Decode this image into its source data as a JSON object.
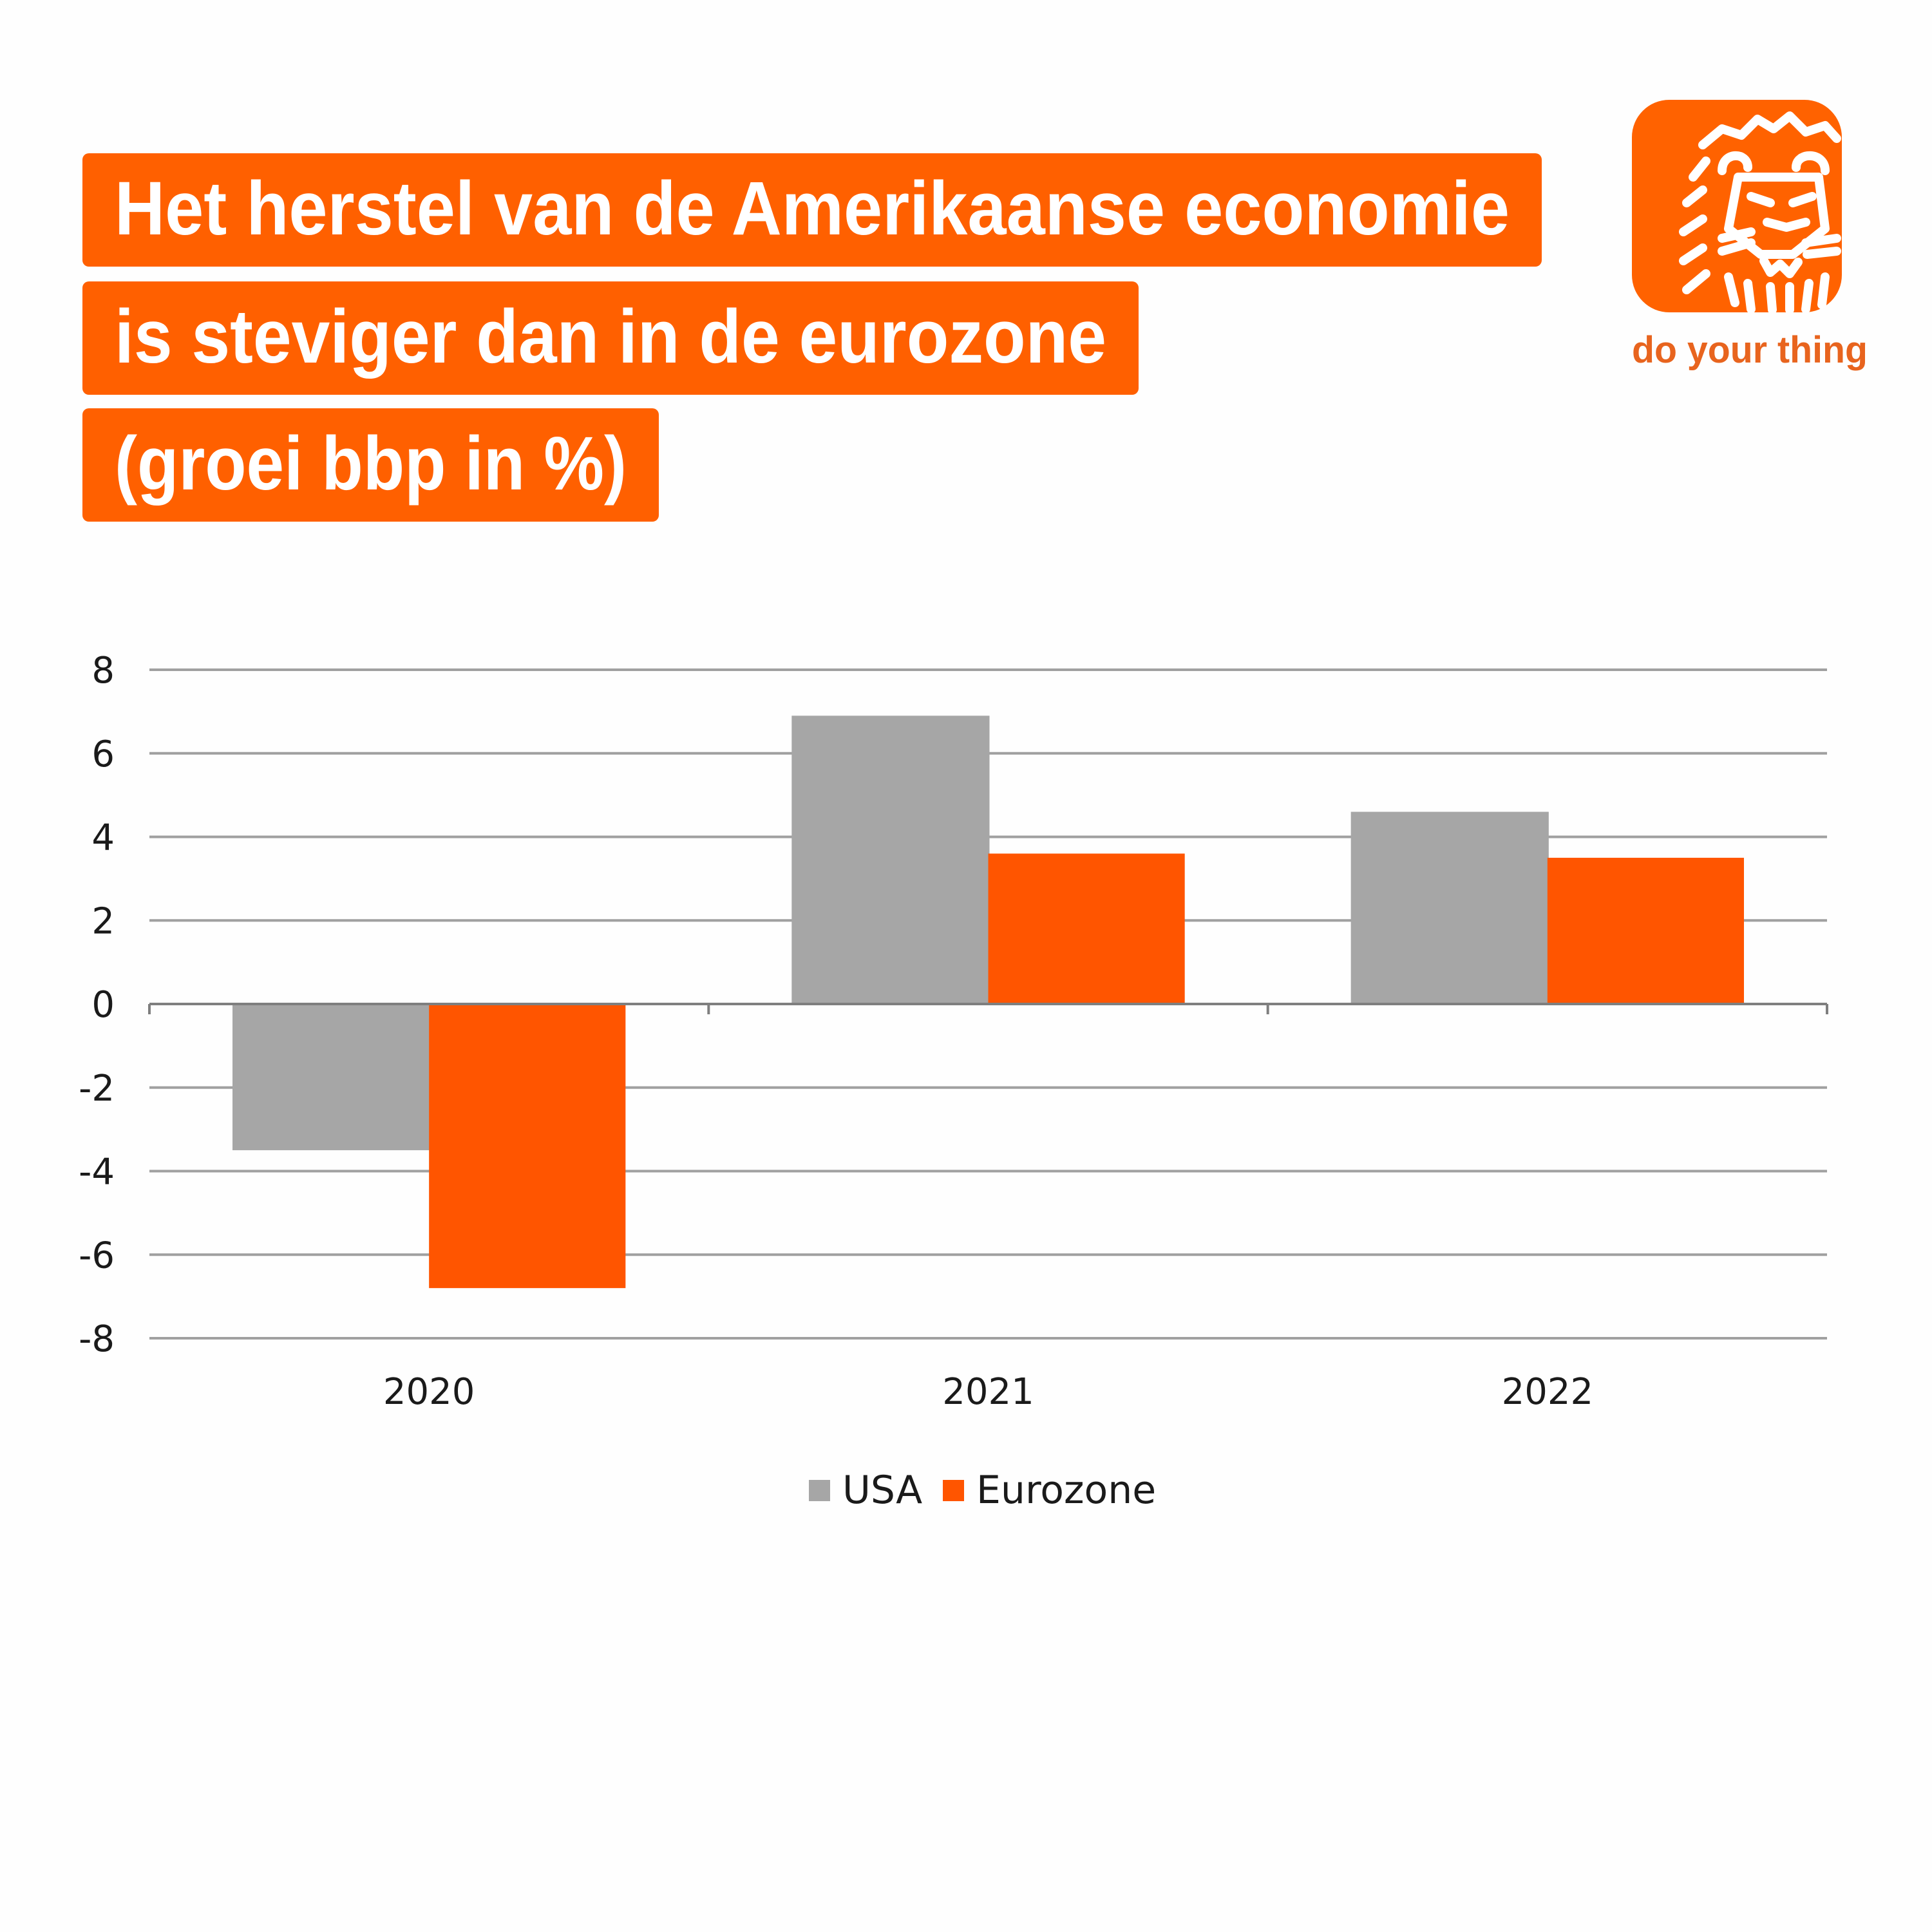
{
  "title": {
    "lines": [
      "Het herstel van de Amerikaanse economie",
      "is steviger dan in de eurozone",
      "(groei bbp in %)"
    ]
  },
  "brand": {
    "logo_icon": "lion-logo-icon",
    "tagline": "do your thing",
    "color": "#ff6200"
  },
  "colors": {
    "title_bg": "#ff6000",
    "usa": "#a6a6a6",
    "eurozone": "#ff5500",
    "grid": "#a0a0a0",
    "axis": "#7f7f7f"
  },
  "chart_data": {
    "type": "bar",
    "title": "Het herstel van de Amerikaanse economie is steviger dan in de eurozone (groei bbp in %)",
    "xlabel": "",
    "ylabel": "",
    "categories": [
      "2020",
      "2021",
      "2022"
    ],
    "series": [
      {
        "name": "USA",
        "color": "#a6a6a6",
        "values": [
          -3.5,
          6.9,
          4.6
        ]
      },
      {
        "name": "Eurozone",
        "color": "#ff5500",
        "values": [
          -6.8,
          3.6,
          3.5
        ]
      }
    ],
    "ylim": [
      -8,
      8
    ],
    "yticks": [
      "8",
      "6",
      "4",
      "2",
      "0",
      "-2",
      "-4",
      "-6",
      "-8"
    ],
    "ytick_values": [
      8,
      6,
      4,
      2,
      0,
      -2,
      -4,
      -6,
      -8
    ],
    "grid": true,
    "legend": {
      "position": "bottom",
      "entries": [
        "USA",
        "Eurozone"
      ]
    }
  }
}
